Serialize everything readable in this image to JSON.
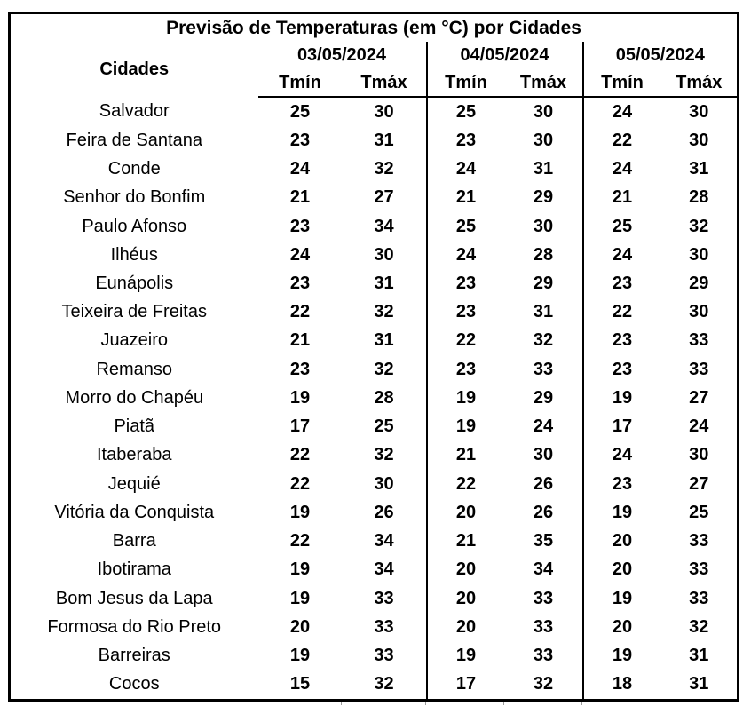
{
  "colors": {
    "border": "#000000",
    "text": "#000000",
    "background": "#ffffff"
  },
  "chart_data": {
    "type": "table",
    "title": "Previsão de Temperaturas (em °C) por Cidades",
    "unit": "°C",
    "city_header": "Cidades",
    "date_headers": [
      "03/05/2024",
      "04/05/2024",
      "05/05/2024"
    ],
    "sub_headers": [
      "Tmín",
      "Tmáx"
    ],
    "rows": [
      {
        "city": "Salvador",
        "temps": [
          25,
          30,
          25,
          30,
          24,
          30
        ]
      },
      {
        "city": "Feira de Santana",
        "temps": [
          23,
          31,
          23,
          30,
          22,
          30
        ]
      },
      {
        "city": "Conde",
        "temps": [
          24,
          32,
          24,
          31,
          24,
          31
        ]
      },
      {
        "city": "Senhor do Bonfim",
        "temps": [
          21,
          27,
          21,
          29,
          21,
          28
        ]
      },
      {
        "city": "Paulo Afonso",
        "temps": [
          23,
          34,
          25,
          30,
          25,
          32
        ]
      },
      {
        "city": "Ilhéus",
        "temps": [
          24,
          30,
          24,
          28,
          24,
          30
        ]
      },
      {
        "city": "Eunápolis",
        "temps": [
          23,
          31,
          23,
          29,
          23,
          29
        ]
      },
      {
        "city": "Teixeira de Freitas",
        "temps": [
          22,
          32,
          23,
          31,
          22,
          30
        ]
      },
      {
        "city": "Juazeiro",
        "temps": [
          21,
          31,
          22,
          32,
          23,
          33
        ]
      },
      {
        "city": "Remanso",
        "temps": [
          23,
          32,
          23,
          33,
          23,
          33
        ]
      },
      {
        "city": "Morro do Chapéu",
        "temps": [
          19,
          28,
          19,
          29,
          19,
          27
        ]
      },
      {
        "city": "Piatã",
        "temps": [
          17,
          25,
          19,
          24,
          17,
          24
        ]
      },
      {
        "city": "Itaberaba",
        "temps": [
          22,
          32,
          21,
          30,
          24,
          30
        ]
      },
      {
        "city": "Jequié",
        "temps": [
          22,
          30,
          22,
          26,
          23,
          27
        ]
      },
      {
        "city": "Vitória da Conquista",
        "temps": [
          19,
          26,
          20,
          26,
          19,
          25
        ]
      },
      {
        "city": "Barra",
        "temps": [
          22,
          34,
          21,
          35,
          20,
          33
        ]
      },
      {
        "city": "Ibotirama",
        "temps": [
          19,
          34,
          20,
          34,
          20,
          33
        ]
      },
      {
        "city": "Bom Jesus da Lapa",
        "temps": [
          19,
          33,
          20,
          33,
          19,
          33
        ]
      },
      {
        "city": "Formosa do Rio Preto",
        "temps": [
          20,
          33,
          20,
          33,
          20,
          32
        ]
      },
      {
        "city": "Barreiras",
        "temps": [
          19,
          33,
          19,
          33,
          19,
          31
        ]
      },
      {
        "city": "Cocos",
        "temps": [
          15,
          32,
          17,
          32,
          18,
          31
        ]
      }
    ]
  }
}
